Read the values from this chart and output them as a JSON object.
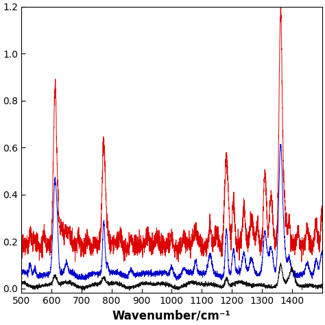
{
  "title": "",
  "xlabel": "Wavenumber/cm⁻¹",
  "ylabel": "",
  "xlim": [
    500,
    1500
  ],
  "background_color": "#ffffff",
  "line_colors": [
    "#dd0000",
    "#0000cc",
    "#111111"
  ],
  "xlabel_fontsize": 12,
  "xlabel_fontweight": "bold",
  "tick_labelsize": 10,
  "xticks": [
    500,
    600,
    700,
    800,
    900,
    1000,
    1100,
    1200,
    1300,
    1400
  ],
  "red_peaks": [
    [
      530,
      0.06
    ],
    [
      545,
      0.04
    ],
    [
      575,
      0.05
    ],
    [
      612,
      0.62
    ],
    [
      620,
      0.1
    ],
    [
      635,
      0.07
    ],
    [
      650,
      0.06
    ],
    [
      660,
      0.05
    ],
    [
      690,
      0.05
    ],
    [
      720,
      0.04
    ],
    [
      774,
      0.42
    ],
    [
      785,
      0.06
    ],
    [
      830,
      0.04
    ],
    [
      865,
      0.05
    ],
    [
      920,
      0.04
    ],
    [
      950,
      0.03
    ],
    [
      1000,
      0.05
    ],
    [
      1040,
      0.04
    ],
    [
      1080,
      0.06
    ],
    [
      1127,
      0.1
    ],
    [
      1150,
      0.06
    ],
    [
      1182,
      0.38
    ],
    [
      1205,
      0.18
    ],
    [
      1240,
      0.14
    ],
    [
      1265,
      0.12
    ],
    [
      1285,
      0.1
    ],
    [
      1310,
      0.32
    ],
    [
      1330,
      0.22
    ],
    [
      1362,
      1.0
    ],
    [
      1375,
      0.15
    ],
    [
      1390,
      0.1
    ],
    [
      1420,
      0.06
    ],
    [
      1450,
      0.07
    ],
    [
      1480,
      0.1
    ],
    [
      1500,
      0.15
    ]
  ],
  "blue_peaks": [
    [
      530,
      0.05
    ],
    [
      545,
      0.03
    ],
    [
      612,
      0.4
    ],
    [
      620,
      0.08
    ],
    [
      650,
      0.04
    ],
    [
      774,
      0.22
    ],
    [
      785,
      0.04
    ],
    [
      865,
      0.03
    ],
    [
      1000,
      0.04
    ],
    [
      1040,
      0.03
    ],
    [
      1080,
      0.05
    ],
    [
      1127,
      0.08
    ],
    [
      1182,
      0.2
    ],
    [
      1205,
      0.1
    ],
    [
      1240,
      0.08
    ],
    [
      1265,
      0.07
    ],
    [
      1310,
      0.18
    ],
    [
      1330,
      0.12
    ],
    [
      1362,
      0.55
    ],
    [
      1375,
      0.08
    ],
    [
      1390,
      0.06
    ],
    [
      1450,
      0.05
    ],
    [
      1480,
      0.07
    ],
    [
      1500,
      0.1
    ]
  ],
  "black_peaks": [
    [
      612,
      0.04
    ],
    [
      774,
      0.03
    ],
    [
      1182,
      0.04
    ],
    [
      1362,
      0.08
    ],
    [
      1400,
      0.06
    ]
  ],
  "red_baseline": 0.18,
  "blue_baseline": 0.06,
  "black_baseline": 0.015,
  "red_noise": 0.018,
  "blue_noise": 0.006,
  "black_noise": 0.004,
  "red_sigma": 4.5,
  "blue_sigma": 5.0,
  "black_sigma": 6.0,
  "ylim": [
    -0.02,
    1.2
  ]
}
